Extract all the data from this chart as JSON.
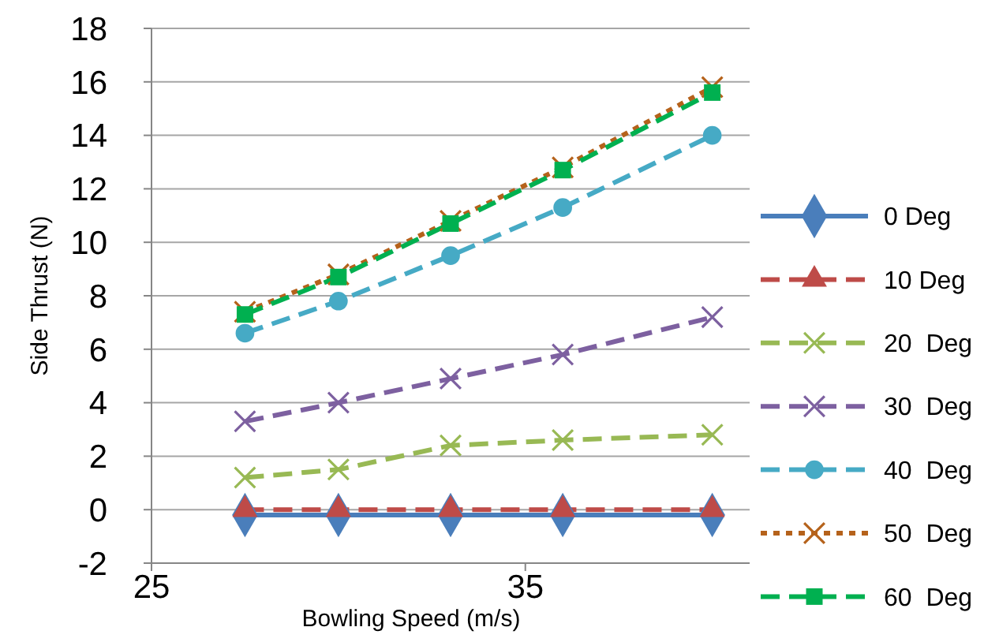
{
  "chart_data": {
    "type": "line",
    "xlabel": "Bowling Speed (m/s)",
    "ylabel": "Side Thrust (N)",
    "x": [
      27.5,
      30,
      33,
      36,
      40
    ],
    "xlim": [
      25,
      41
    ],
    "xticks": [
      25,
      35
    ],
    "ylim": [
      -2,
      18
    ],
    "yticks": [
      -2,
      0,
      2,
      4,
      6,
      8,
      10,
      12,
      14,
      16,
      18
    ],
    "grid": "y",
    "legend": "right",
    "series": [
      {
        "name": "0 Deg",
        "color": "#4a7ebb",
        "marker": "diamond",
        "line_style": "solid",
        "values": [
          -0.2,
          -0.2,
          -0.2,
          -0.2,
          -0.2
        ]
      },
      {
        "name": "10 Deg",
        "color": "#be4b48",
        "marker": "triangle",
        "line_style": "dashed",
        "values": [
          0,
          0,
          0,
          0,
          0
        ]
      },
      {
        "name": "20  Deg",
        "color": "#98b954",
        "marker": "cross",
        "line_style": "dashed",
        "values": [
          1.2,
          1.5,
          2.4,
          2.6,
          2.8
        ]
      },
      {
        "name": "30  Deg",
        "color": "#7d60a0",
        "marker": "cross",
        "line_style": "dashed",
        "values": [
          3.3,
          4.0,
          4.9,
          5.8,
          7.2
        ]
      },
      {
        "name": "40  Deg",
        "color": "#46aac5",
        "marker": "circle",
        "line_style": "dashed",
        "values": [
          6.6,
          7.8,
          9.5,
          11.3,
          14.0
        ]
      },
      {
        "name": "50  Deg",
        "color": "#b5621b",
        "marker": "cross",
        "line_style": "dotted",
        "values": [
          7.4,
          8.8,
          10.8,
          12.8,
          15.8
        ]
      },
      {
        "name": "60  Deg",
        "color": "#00b050",
        "marker": "square",
        "line_style": "dashed",
        "values": [
          7.3,
          8.7,
          10.7,
          12.7,
          15.6
        ]
      }
    ]
  }
}
